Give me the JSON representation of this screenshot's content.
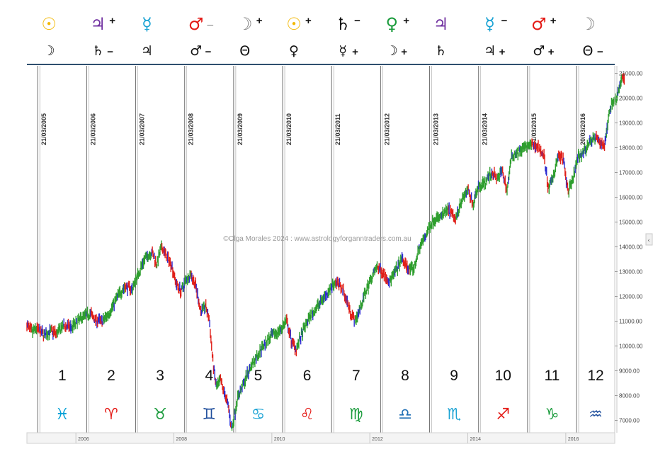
{
  "header": {
    "row1": [
      {
        "glyph": "☉",
        "suffix": "",
        "color": "#f2b700"
      },
      {
        "glyph": "♃",
        "suffix": "+",
        "color": "#7030a0"
      },
      {
        "glyph": "☿",
        "suffix": "",
        "color": "#1ba3d4"
      },
      {
        "glyph": "♂",
        "suffix": "_",
        "color": "#e41b17"
      },
      {
        "glyph": "☽",
        "suffix": "+",
        "color": "#808080"
      },
      {
        "glyph": "☉",
        "suffix": "+",
        "color": "#f2b700"
      },
      {
        "glyph": "♄",
        "suffix": "−",
        "color": "#111111"
      },
      {
        "glyph": "♀",
        "suffix": "+",
        "color": "#1a9b3c"
      },
      {
        "glyph": "♃",
        "suffix": "",
        "color": "#7030a0"
      },
      {
        "glyph": "☿",
        "suffix": "−",
        "color": "#1ba3d4"
      },
      {
        "glyph": "♂",
        "suffix": "+",
        "color": "#e41b17"
      },
      {
        "glyph": "☽",
        "suffix": "",
        "color": "#808080"
      }
    ],
    "row2": [
      {
        "glyph": "☽",
        "suffix": ""
      },
      {
        "glyph": "♄",
        "suffix": "−"
      },
      {
        "glyph": "♃",
        "suffix": ""
      },
      {
        "glyph": "♂",
        "suffix": "−"
      },
      {
        "glyph": "Θ",
        "suffix": ""
      },
      {
        "glyph": "♀",
        "suffix": ""
      },
      {
        "glyph": "☿",
        "suffix": "+"
      },
      {
        "glyph": "☽",
        "suffix": "+"
      },
      {
        "glyph": "♄",
        "suffix": ""
      },
      {
        "glyph": "♃",
        "suffix": "+"
      },
      {
        "glyph": "♂",
        "suffix": "+"
      },
      {
        "glyph": "Θ",
        "suffix": "−"
      }
    ]
  },
  "watermark": "©Olga Morales 2024 : www.astrologyforganntraders.com.au",
  "chart_data": {
    "type": "line",
    "ylim": [
      6500,
      21300
    ],
    "yticks": [
      "21000.00",
      "20000.00",
      "19000.00",
      "18000.00",
      "17000.00",
      "16000.00",
      "15000.00",
      "14000.00",
      "13000.00",
      "12000.00",
      "11000.00",
      "10000.00",
      "9000.00",
      "8000.00",
      "7000.00"
    ],
    "xlim": [
      2005.0,
      2017.0
    ],
    "xticks": [
      {
        "label": "2006",
        "x": 2006.0
      },
      {
        "label": "2008",
        "x": 2008.0
      },
      {
        "label": "2010",
        "x": 2010.0
      },
      {
        "label": "2012",
        "x": 2012.0
      },
      {
        "label": "2014",
        "x": 2014.0
      },
      {
        "label": "2016",
        "x": 2016.0
      }
    ],
    "verticals": [
      {
        "label": "21/03/2005",
        "x": 2005.22
      },
      {
        "label": "21/03/2006",
        "x": 2006.22
      },
      {
        "label": "21/03/2007",
        "x": 2007.22
      },
      {
        "label": "21/03/2008",
        "x": 2008.22
      },
      {
        "label": "21/03/2009",
        "x": 2009.22
      },
      {
        "label": "21/03/2010",
        "x": 2010.22
      },
      {
        "label": "21/03/2011",
        "x": 2011.22
      },
      {
        "label": "21/03/2012",
        "x": 2012.22
      },
      {
        "label": "21/03/2013",
        "x": 2013.22
      },
      {
        "label": "21/03/2014",
        "x": 2014.22
      },
      {
        "label": "21/03/2015",
        "x": 2015.22
      },
      {
        "label": "20/03/2016",
        "x": 2016.22
      },
      {
        "label": "",
        "x": 2017.0
      }
    ],
    "segments": [
      {
        "number": "1",
        "sign": "♓",
        "color": "#00a0d6"
      },
      {
        "number": "2",
        "sign": "♈",
        "color": "#e41b17"
      },
      {
        "number": "3",
        "sign": "♉",
        "color": "#1a9b3c"
      },
      {
        "number": "4",
        "sign": "♊",
        "color": "#1f4e9c"
      },
      {
        "number": "5",
        "sign": "♋",
        "color": "#1ba3d4"
      },
      {
        "number": "6",
        "sign": "♌",
        "color": "#e41b17"
      },
      {
        "number": "7",
        "sign": "♍",
        "color": "#1a9b3c"
      },
      {
        "number": "8",
        "sign": "♎",
        "color": "#1f6fb5"
      },
      {
        "number": "9",
        "sign": "♏",
        "color": "#1ba3d4"
      },
      {
        "number": "10",
        "sign": "♐",
        "color": "#e41b17"
      },
      {
        "number": "11",
        "sign": "♑",
        "color": "#1a9b3c"
      },
      {
        "number": "12",
        "sign": "♒",
        "color": "#1f4e9c"
      }
    ],
    "series": [
      {
        "values": [
          [
            2005.0,
            10850
          ],
          [
            2005.1,
            10550
          ],
          [
            2005.2,
            10700
          ],
          [
            2005.35,
            10450
          ],
          [
            2005.5,
            10600
          ],
          [
            2005.6,
            10500
          ],
          [
            2005.75,
            10800
          ],
          [
            2005.9,
            10750
          ],
          [
            2006.0,
            10900
          ],
          [
            2006.15,
            11200
          ],
          [
            2006.3,
            11300
          ],
          [
            2006.4,
            11050
          ],
          [
            2006.55,
            11000
          ],
          [
            2006.7,
            11400
          ],
          [
            2006.85,
            12000
          ],
          [
            2007.0,
            12400
          ],
          [
            2007.15,
            12300
          ],
          [
            2007.25,
            12800
          ],
          [
            2007.4,
            13500
          ],
          [
            2007.55,
            13800
          ],
          [
            2007.65,
            13300
          ],
          [
            2007.75,
            14000
          ],
          [
            2007.85,
            13600
          ],
          [
            2007.95,
            13300
          ],
          [
            2008.05,
            12500
          ],
          [
            2008.15,
            12200
          ],
          [
            2008.25,
            12700
          ],
          [
            2008.35,
            12900
          ],
          [
            2008.45,
            12400
          ],
          [
            2008.55,
            11400
          ],
          [
            2008.65,
            11600
          ],
          [
            2008.72,
            11100
          ],
          [
            2008.8,
            9300
          ],
          [
            2008.87,
            8300
          ],
          [
            2008.95,
            8600
          ],
          [
            2009.05,
            8000
          ],
          [
            2009.12,
            7500
          ],
          [
            2009.18,
            6600
          ],
          [
            2009.3,
            7900
          ],
          [
            2009.45,
            8600
          ],
          [
            2009.55,
            9100
          ],
          [
            2009.7,
            9600
          ],
          [
            2009.85,
            10100
          ],
          [
            2010.0,
            10400
          ],
          [
            2010.15,
            10600
          ],
          [
            2010.3,
            11000
          ],
          [
            2010.4,
            10200
          ],
          [
            2010.5,
            9900
          ],
          [
            2010.6,
            10400
          ],
          [
            2010.75,
            11100
          ],
          [
            2010.9,
            11500
          ],
          [
            2011.0,
            11800
          ],
          [
            2011.15,
            12200
          ],
          [
            2011.3,
            12600
          ],
          [
            2011.45,
            12300
          ],
          [
            2011.6,
            11400
          ],
          [
            2011.7,
            11000
          ],
          [
            2011.8,
            11500
          ],
          [
            2011.9,
            12100
          ],
          [
            2012.0,
            12600
          ],
          [
            2012.15,
            13200
          ],
          [
            2012.3,
            12900
          ],
          [
            2012.4,
            12600
          ],
          [
            2012.5,
            12900
          ],
          [
            2012.65,
            13500
          ],
          [
            2012.8,
            13100
          ],
          [
            2012.9,
            13100
          ],
          [
            2013.0,
            13900
          ],
          [
            2013.15,
            14500
          ],
          [
            2013.3,
            15100
          ],
          [
            2013.45,
            15200
          ],
          [
            2013.6,
            15500
          ],
          [
            2013.75,
            15100
          ],
          [
            2013.85,
            15800
          ],
          [
            2014.0,
            16300
          ],
          [
            2014.1,
            15700
          ],
          [
            2014.2,
            16400
          ],
          [
            2014.35,
            16600
          ],
          [
            2014.5,
            17000
          ],
          [
            2014.6,
            16700
          ],
          [
            2014.7,
            17100
          ],
          [
            2014.8,
            16300
          ],
          [
            2014.9,
            17700
          ],
          [
            2015.0,
            17800
          ],
          [
            2015.15,
            18000
          ],
          [
            2015.3,
            18100
          ],
          [
            2015.45,
            18000
          ],
          [
            2015.55,
            17700
          ],
          [
            2015.65,
            16300
          ],
          [
            2015.75,
            16900
          ],
          [
            2015.85,
            17700
          ],
          [
            2015.95,
            17500
          ],
          [
            2016.05,
            16200
          ],
          [
            2016.12,
            16500
          ],
          [
            2016.25,
            17600
          ],
          [
            2016.4,
            17900
          ],
          [
            2016.5,
            18300
          ],
          [
            2016.6,
            18400
          ],
          [
            2016.7,
            18200
          ],
          [
            2016.8,
            18100
          ],
          [
            2016.86,
            19100
          ],
          [
            2016.93,
            19800
          ],
          [
            2017.0,
            19900
          ],
          [
            2017.08,
            20300
          ],
          [
            2017.15,
            20900
          ],
          [
            2017.2,
            20700
          ]
        ]
      }
    ]
  }
}
